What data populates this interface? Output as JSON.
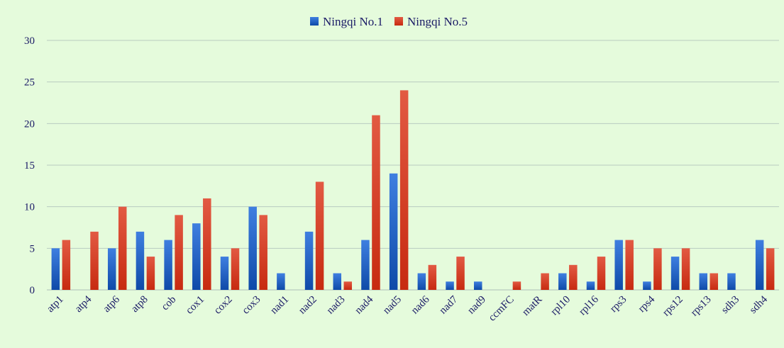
{
  "chart_data": {
    "type": "bar",
    "title": "",
    "xlabel": "",
    "ylabel": "",
    "ylim": [
      0,
      30
    ],
    "yticks": [
      0,
      5,
      10,
      15,
      20,
      25,
      30
    ],
    "grid": true,
    "legend_position": "top-center",
    "categories": [
      "atp1",
      "atp4",
      "atp6",
      "atp8",
      "cob",
      "cox1",
      "cox2",
      "cox3",
      "nad1",
      "nad2",
      "nad3",
      "nad4",
      "nad5",
      "nad6",
      "nad7",
      "nad9",
      "ccmFC",
      "matR",
      "rpl10",
      "rpl16",
      "rps3",
      "rps4",
      "rps12",
      "rps13",
      "sdh3",
      "sdh4"
    ],
    "series": [
      {
        "name": "Ningqi No.1",
        "color": "#1c5bbf",
        "values": [
          5,
          0,
          5,
          7,
          6,
          8,
          4,
          10,
          2,
          7,
          2,
          6,
          14,
          2,
          1,
          1,
          0,
          0,
          2,
          1,
          6,
          1,
          4,
          2,
          2,
          6
        ]
      },
      {
        "name": "Ningqi No.5",
        "color": "#d23a23",
        "values": [
          6,
          7,
          10,
          4,
          9,
          11,
          5,
          9,
          0,
          13,
          1,
          21,
          24,
          3,
          4,
          0,
          1,
          2,
          3,
          4,
          6,
          5,
          5,
          2,
          0,
          5
        ]
      }
    ]
  }
}
